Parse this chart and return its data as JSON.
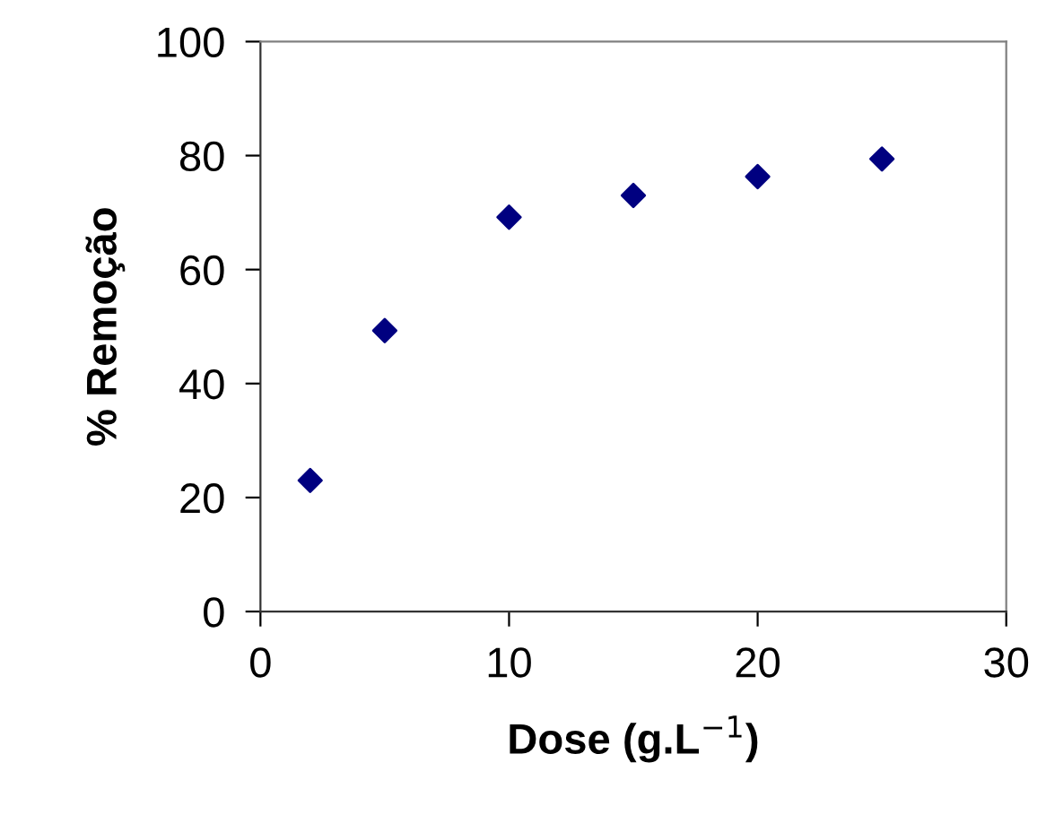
{
  "chart_data": {
    "type": "scatter",
    "xlabel": "Dose (g.L$^{−1}$)",
    "ylabel": "% Remoção",
    "x": [
      2,
      5,
      10,
      15,
      20,
      25
    ],
    "series": [
      {
        "color": "#000080",
        "values": [
          23,
          49.3,
          69.2,
          73,
          76.3,
          79.4
        ]
      }
    ],
    "xlim": [
      0,
      30
    ],
    "xticks": [
      0,
      10,
      20,
      30
    ],
    "ylim": [
      0,
      100
    ],
    "yticks": [
      0,
      20,
      40,
      60,
      80,
      100
    ],
    "marker": "diamond",
    "grid": false,
    "legend": false
  }
}
